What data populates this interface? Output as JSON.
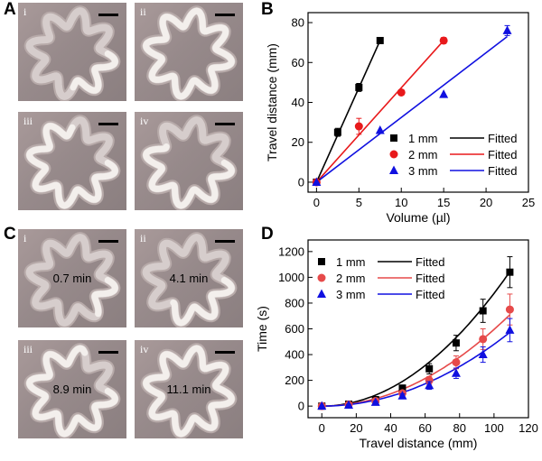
{
  "panels": {
    "A": {
      "letter": "A",
      "photos": [
        {
          "sub": "i",
          "fill": 0.25,
          "time": ""
        },
        {
          "sub": "ii",
          "fill": 1.0,
          "time": ""
        },
        {
          "sub": "iii",
          "fill": 0.75,
          "time": ""
        },
        {
          "sub": "iv",
          "fill": 0.6,
          "time": ""
        }
      ]
    },
    "C": {
      "letter": "C",
      "photos": [
        {
          "sub": "i",
          "fill": 0.15,
          "time": "0.7 min"
        },
        {
          "sub": "ii",
          "fill": 0.35,
          "time": "4.1 min"
        },
        {
          "sub": "iii",
          "fill": 0.8,
          "time": "8.9 min"
        },
        {
          "sub": "iv",
          "fill": 1.0,
          "time": "11.1 min"
        }
      ]
    },
    "B": {
      "letter": "B"
    },
    "D": {
      "letter": "D"
    }
  },
  "colors": {
    "black": "#000000",
    "red": "#e8191b",
    "blue": "#1010e0",
    "red_marker": "#e64a4a"
  },
  "chart_data": [
    {
      "panel": "B",
      "type": "scatter",
      "xlabel": "Volume (µl)",
      "ylabel": "Travel distance (mm)",
      "xlim": [
        -1,
        25
      ],
      "ylim": [
        -5,
        85
      ],
      "xticks": [
        0,
        5,
        10,
        15,
        20,
        25
      ],
      "yticks": [
        0,
        20,
        40,
        60,
        80
      ],
      "legend_position": "bottom-right",
      "series": [
        {
          "name": "1 mm",
          "marker": "square",
          "color": "#000000",
          "x": [
            0,
            2.5,
            5,
            7.5
          ],
          "y": [
            0,
            25,
            47.5,
            71
          ],
          "err": [
            0,
            2,
            2,
            1
          ],
          "fit_label": "Fitted",
          "fit_x": [
            0,
            7.5
          ],
          "fit_y": [
            0,
            71
          ]
        },
        {
          "name": "2 mm",
          "marker": "circle",
          "color": "#e8191b",
          "x": [
            0,
            5,
            10,
            15
          ],
          "y": [
            0,
            28,
            45,
            71
          ],
          "err": [
            0,
            4,
            0,
            1.5
          ],
          "fit_label": "Fitted",
          "fit_x": [
            0,
            15
          ],
          "fit_y": [
            0,
            71
          ]
        },
        {
          "name": "3 mm",
          "marker": "triangle",
          "color": "#1010e0",
          "x": [
            0,
            7.5,
            15,
            22.5
          ],
          "y": [
            0,
            26,
            44,
            76
          ],
          "err": [
            0,
            0,
            0,
            2.5
          ],
          "fit_label": "Fitted",
          "fit_x": [
            0,
            22.5
          ],
          "fit_y": [
            0,
            73
          ]
        }
      ]
    },
    {
      "panel": "D",
      "type": "scatter",
      "xlabel": "Travel distance (mm)",
      "ylabel": "Time (s)",
      "xlim": [
        -8,
        120
      ],
      "ylim": [
        -90,
        1290
      ],
      "xticks": [
        0,
        20,
        40,
        60,
        80,
        100,
        120
      ],
      "yticks": [
        0,
        200,
        400,
        600,
        800,
        1000,
        1200
      ],
      "legend_position": "top-left",
      "series": [
        {
          "name": "1 mm",
          "marker": "square",
          "color": "#000000",
          "x": [
            0,
            15.6,
            31.2,
            46.8,
            62.4,
            78,
            93.6,
            109.2
          ],
          "y": [
            0,
            15,
            50,
            140,
            290,
            490,
            740,
            1040
          ],
          "err": [
            0,
            5,
            10,
            20,
            40,
            60,
            90,
            120
          ],
          "fit_label": "Fitted",
          "fit_k": 0.0875
        },
        {
          "name": "2 mm",
          "marker": "circle",
          "color": "#e64a4a",
          "x": [
            0,
            15.6,
            31.2,
            46.8,
            62.4,
            78,
            93.6,
            109.2
          ],
          "y": [
            0,
            12,
            40,
            100,
            200,
            340,
            520,
            750
          ],
          "err": [
            0,
            5,
            8,
            20,
            30,
            50,
            80,
            120
          ],
          "fit_label": "Fitted",
          "fit_k": 0.0595
        },
        {
          "name": "3 mm",
          "marker": "triangle",
          "color": "#1010e0",
          "x": [
            0,
            15.6,
            31.2,
            46.8,
            62.4,
            78,
            93.6,
            109.2
          ],
          "y": [
            0,
            8,
            30,
            80,
            160,
            255,
            400,
            590
          ],
          "err": [
            0,
            4,
            8,
            15,
            30,
            40,
            60,
            90
          ],
          "fit_label": "Fitted",
          "fit_k": 0.048
        }
      ]
    }
  ]
}
